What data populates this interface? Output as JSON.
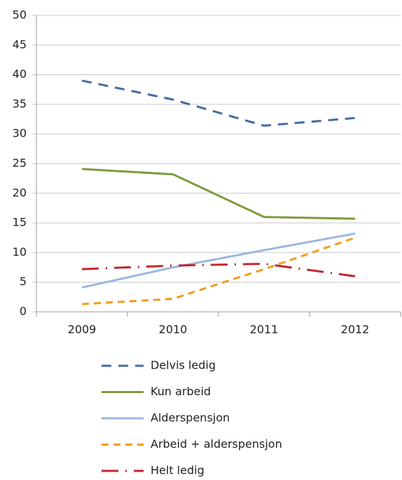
{
  "chart_data": {
    "type": "line",
    "categories": [
      "2009",
      "2010",
      "2011",
      "2012"
    ],
    "series": [
      {
        "name": "Delvis ledig",
        "color": "#3f6ca5",
        "dash": "14 10",
        "values": [
          39,
          35.8,
          31.4,
          32.7
        ]
      },
      {
        "name": "Kun arbeid",
        "color": "#7f9a3c",
        "dash": "none",
        "values": [
          24.1,
          23.2,
          16,
          15.7
        ]
      },
      {
        "name": "Alderspensjon",
        "color": "#9bb6de",
        "dash": "none",
        "values": [
          4.1,
          7.5,
          10.4,
          13.2
        ]
      },
      {
        "name": "Arbeid + alderspensjon",
        "color": "#f39c1f",
        "dash": "10 7",
        "values": [
          1.3,
          2.2,
          7.2,
          12.5
        ]
      },
      {
        "name": "Helt ledig",
        "color": "#c1272d",
        "dash": "24 10 2 10",
        "values": [
          7.2,
          7.8,
          8.1,
          6
        ]
      }
    ],
    "ylim": [
      0,
      50
    ],
    "yticks": [
      0,
      5,
      10,
      15,
      20,
      25,
      30,
      35,
      40,
      45,
      50
    ],
    "grid": true,
    "legend": "bottom"
  }
}
